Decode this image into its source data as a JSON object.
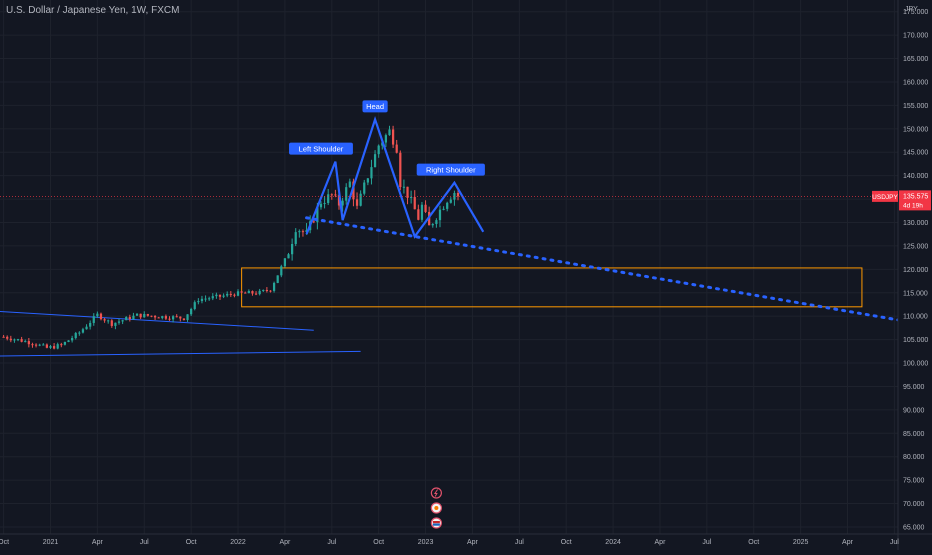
{
  "header": {
    "title": "U.S. Dollar / Japanese Yen, 1W, FXCM"
  },
  "chart_data": {
    "type": "candlestick",
    "symbol": "USDJPY",
    "currency_label": "JPY",
    "price_badge": {
      "symbol": "USDJPY",
      "price": "135.575",
      "countdown": "4d 19h"
    },
    "y_ticks": [
      "175.000",
      "170.000",
      "165.000",
      "160.000",
      "155.000",
      "150.000",
      "145.000",
      "140.000",
      "135.000",
      "130.000",
      "125.000",
      "120.000",
      "115.000",
      "110.000",
      "105.000",
      "100.000",
      "95.000",
      "90.000",
      "85.000",
      "80.000",
      "75.000",
      "70.000",
      "65.000"
    ],
    "y_tick_values": [
      175,
      170,
      165,
      160,
      155,
      150,
      145,
      140,
      135,
      130,
      125,
      120,
      115,
      110,
      105,
      100,
      95,
      90,
      85,
      80,
      75,
      70,
      65
    ],
    "ylim": [
      63.5,
      177.5
    ],
    "x_ticks": [
      {
        "label": "Oct",
        "t": 0
      },
      {
        "label": "2021",
        "t": 13
      },
      {
        "label": "Apr",
        "t": 26
      },
      {
        "label": "Jul",
        "t": 39
      },
      {
        "label": "Oct",
        "t": 52
      },
      {
        "label": "2022",
        "t": 65
      },
      {
        "label": "Apr",
        "t": 78
      },
      {
        "label": "Jul",
        "t": 91
      },
      {
        "label": "Oct",
        "t": 104
      },
      {
        "label": "2023",
        "t": 117
      },
      {
        "label": "Apr",
        "t": 130
      },
      {
        "label": "Jul",
        "t": 143
      },
      {
        "label": "Oct",
        "t": 156
      },
      {
        "label": "2024",
        "t": 169
      },
      {
        "label": "Apr",
        "t": 182
      },
      {
        "label": "Jul",
        "t": 195
      },
      {
        "label": "Oct",
        "t": 208
      },
      {
        "label": "2025",
        "t": 221
      },
      {
        "label": "Apr",
        "t": 234
      },
      {
        "label": "Jul",
        "t": 247
      }
    ],
    "x_range": [
      -1,
      248
    ],
    "ohlc_anchors": [
      {
        "t": 0,
        "p": 105.6
      },
      {
        "t": 8,
        "p": 104.3
      },
      {
        "t": 12,
        "p": 103.2
      },
      {
        "t": 16,
        "p": 103.8
      },
      {
        "t": 21,
        "p": 106.5
      },
      {
        "t": 26,
        "p": 110.3
      },
      {
        "t": 30,
        "p": 108.4
      },
      {
        "t": 37,
        "p": 110.2
      },
      {
        "t": 40,
        "p": 110.1
      },
      {
        "t": 50,
        "p": 109.6
      },
      {
        "t": 54,
        "p": 113.6
      },
      {
        "t": 60,
        "p": 114.2
      },
      {
        "t": 64,
        "p": 114.8
      },
      {
        "t": 71,
        "p": 115.0
      },
      {
        "t": 74,
        "p": 115.8
      },
      {
        "t": 79,
        "p": 123.5
      },
      {
        "t": 81,
        "p": 129.0
      },
      {
        "t": 84,
        "p": 127.5
      },
      {
        "t": 88,
        "p": 134.5
      },
      {
        "t": 91,
        "p": 135.8
      },
      {
        "t": 93,
        "p": 134.0
      },
      {
        "t": 96,
        "p": 138.5
      },
      {
        "t": 98,
        "p": 133.0
      },
      {
        "t": 101,
        "p": 140.0
      },
      {
        "t": 104,
        "p": 146.5
      },
      {
        "t": 107,
        "p": 149.5
      },
      {
        "t": 109,
        "p": 146.0
      },
      {
        "t": 110,
        "p": 138.5
      },
      {
        "t": 112,
        "p": 136.0
      },
      {
        "t": 115,
        "p": 131.0
      },
      {
        "t": 116,
        "p": 133.5
      },
      {
        "t": 118,
        "p": 129.0
      },
      {
        "t": 120,
        "p": 131.5
      },
      {
        "t": 123,
        "p": 135.0
      },
      {
        "t": 125,
        "p": 136.5
      },
      {
        "t": 126,
        "p": 135.575
      }
    ],
    "current_price": 135.575,
    "pattern": {
      "zigzag": [
        {
          "t": 84,
          "p": 127.5
        },
        {
          "t": 92,
          "p": 143.0
        },
        {
          "t": 94,
          "p": 130.5
        },
        {
          "t": 103,
          "p": 152.0
        },
        {
          "t": 114,
          "p": 127.0
        },
        {
          "t": 125,
          "p": 138.5
        },
        {
          "t": 133,
          "p": 128.0
        }
      ],
      "labels": [
        {
          "text": "Left Shoulder",
          "t": 88,
          "p": 144.5
        },
        {
          "text": "Head",
          "t": 103,
          "p": 153.5
        },
        {
          "text": "Right Shoulder",
          "t": 124,
          "p": 140.0
        }
      ],
      "neckline": {
        "t1": 84,
        "p1": 131.0,
        "t2": 248,
        "p2": 109.2
      }
    },
    "trendlines": [
      {
        "t1": -1,
        "p1": 111.0,
        "t2": 86,
        "p2": 107.0
      },
      {
        "t1": -1,
        "p1": 101.5,
        "t2": 99,
        "p2": 102.5
      }
    ],
    "zone": {
      "t1": 66,
      "p_top": 120.3,
      "t2": 238,
      "p_bottom": 112.0
    },
    "colors": {
      "background": "#131722",
      "grid": "#1e222d",
      "up": "#26a69a",
      "down": "#ef5350",
      "pattern": "#2962ff",
      "neckline": "#2962ff",
      "zone": "#ff9800",
      "price_line": "#f23645",
      "axis_text": "#b2b5be"
    }
  }
}
